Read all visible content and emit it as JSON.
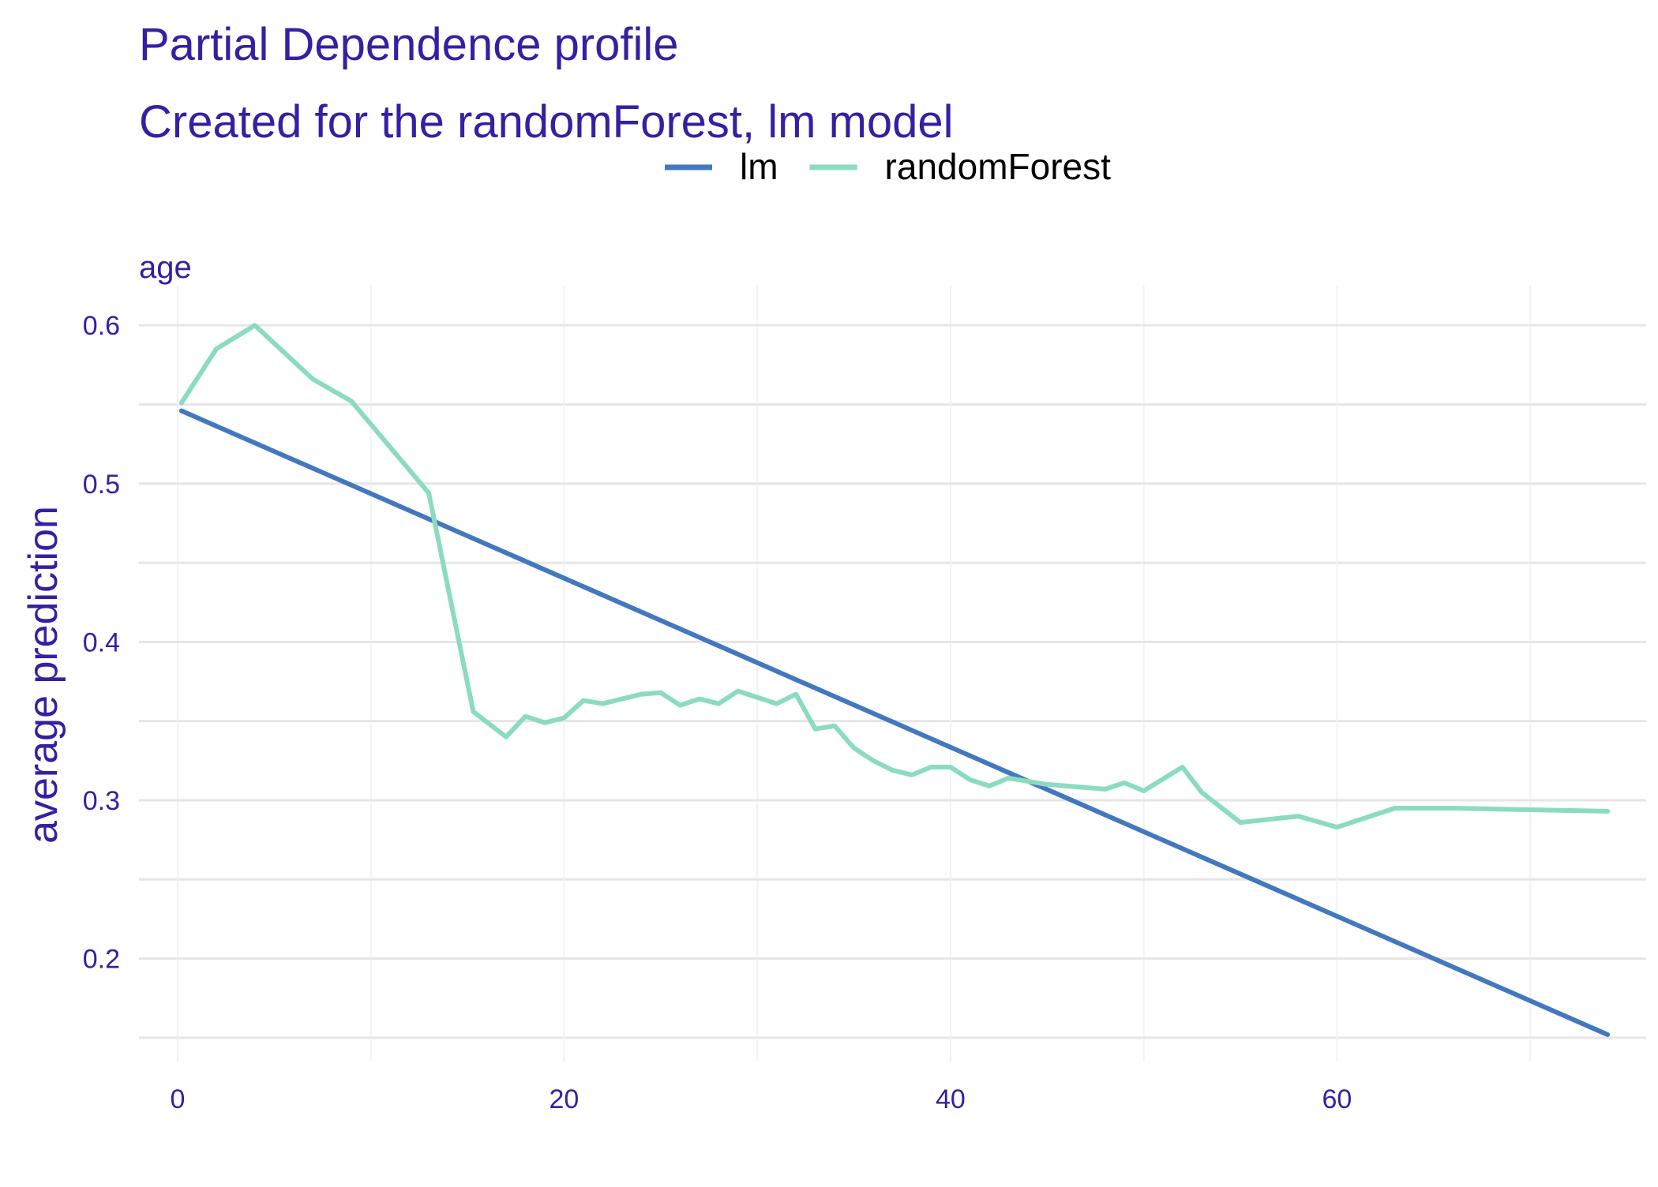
{
  "colors": {
    "title": "#371ea3",
    "axis_text": "#371ea3",
    "grid": "#e6e6e6",
    "grid_minor": "#f2f2f2",
    "legend_text": "#000000"
  },
  "chart_data": {
    "type": "line",
    "title": "Partial Dependence profile",
    "subtitle": "Created for the randomForest, lm model",
    "panel_label": "age",
    "xlabel": "",
    "ylabel": "average prediction",
    "xlim": [
      -2,
      76
    ],
    "ylim": [
      0.135,
      0.625
    ],
    "x_ticks": [
      0,
      20,
      40,
      60
    ],
    "x_tick_labels": [
      "0",
      "20",
      "40",
      "60"
    ],
    "x_minor_ticks": [
      10,
      30,
      50,
      70
    ],
    "y_ticks": [
      0.2,
      0.3,
      0.4,
      0.5,
      0.6
    ],
    "y_tick_labels": [
      "0.2",
      "0.3",
      "0.4",
      "0.5",
      "0.6"
    ],
    "y_minor_ticks": [
      0.15,
      0.25,
      0.35,
      0.45,
      0.55
    ],
    "grid": true,
    "legend_position": "top",
    "series": [
      {
        "name": "lm",
        "color": "#4378bf",
        "x": [
          0.2,
          74
        ],
        "y": [
          0.546,
          0.152
        ]
      },
      {
        "name": "randomForest",
        "color": "#8bdcbe",
        "x": [
          0.2,
          2,
          4,
          7,
          9,
          13,
          15.3,
          17,
          18,
          19,
          20,
          21,
          22,
          23,
          24,
          25,
          26,
          27,
          28,
          29,
          30,
          31,
          32,
          33,
          34,
          35,
          36,
          37,
          38,
          39,
          40,
          41,
          42,
          43,
          44,
          45,
          46,
          47,
          48,
          49,
          50,
          52,
          53,
          55,
          58,
          60,
          63,
          66,
          70,
          74
        ],
        "y": [
          0.551,
          0.585,
          0.6,
          0.566,
          0.552,
          0.494,
          0.356,
          0.34,
          0.353,
          0.349,
          0.352,
          0.363,
          0.361,
          0.364,
          0.367,
          0.368,
          0.36,
          0.364,
          0.361,
          0.369,
          0.365,
          0.361,
          0.367,
          0.345,
          0.347,
          0.333,
          0.325,
          0.319,
          0.316,
          0.321,
          0.321,
          0.313,
          0.309,
          0.314,
          0.312,
          0.31,
          0.309,
          0.308,
          0.307,
          0.311,
          0.306,
          0.321,
          0.305,
          0.286,
          0.29,
          0.283,
          0.295,
          0.295,
          0.294,
          0.293
        ]
      }
    ]
  }
}
